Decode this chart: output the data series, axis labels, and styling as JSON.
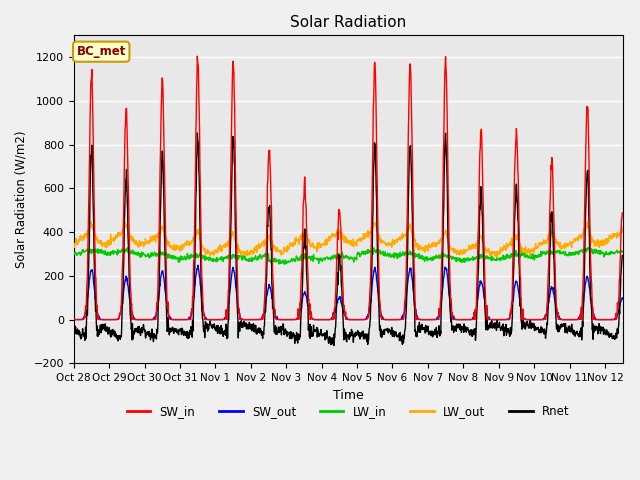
{
  "title": "Solar Radiation",
  "xlabel": "Time",
  "ylabel": "Solar Radiation (W/m2)",
  "ylim": [
    -200,
    1300
  ],
  "yticks": [
    -200,
    0,
    200,
    400,
    600,
    800,
    1000,
    1200
  ],
  "xtick_labels": [
    "Oct 28",
    "Oct 29",
    "Oct 30",
    "Oct 31",
    "Nov 1",
    "Nov 2",
    "Nov 3",
    "Nov 4",
    "Nov 5",
    "Nov 6",
    "Nov 7",
    "Nov 8",
    "Nov 9",
    "Nov 10",
    "Nov 11",
    "Nov 12"
  ],
  "colors": {
    "SW_in": "#ff0000",
    "SW_out": "#0000ff",
    "LW_in": "#00cc00",
    "LW_out": "#ffaa00",
    "Rnet": "#000000"
  },
  "bg_color": "#f0f0f0",
  "plot_bg_color": "#e8e8e8",
  "annotation_text": "BC_met",
  "annotation_bg": "#ffffcc",
  "annotation_border": "#cc9900",
  "annotation_text_color": "#880000",
  "total_days": 15.5,
  "dt_hours": 0.25,
  "peak_heights_SW": [
    1130,
    960,
    1100,
    1190,
    1165,
    770,
    610,
    505,
    1160,
    1165,
    1190,
    870,
    870,
    730,
    980,
    500
  ],
  "peak_hours_SW": [
    12.0,
    11.5,
    12.0,
    12.0,
    12.0,
    12.5,
    12.5,
    12.0,
    12.0,
    12.0,
    12.0,
    12.0,
    12.0,
    12.0,
    12.0,
    12.0
  ],
  "grid_color": "#ffffff",
  "line_width": 1.0
}
